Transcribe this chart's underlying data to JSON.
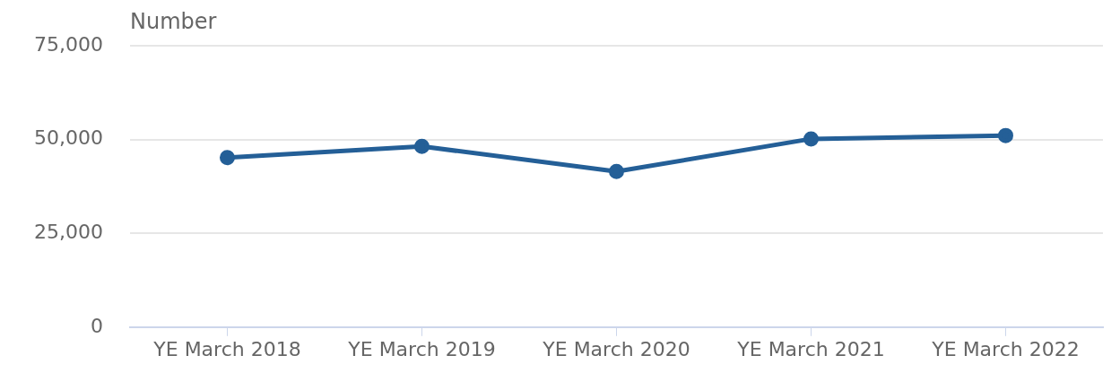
{
  "chart_data": {
    "type": "line",
    "ylabel": "Number",
    "categories": [
      "YE March 2018",
      "YE March 2019",
      "YE March 2020",
      "YE March 2021",
      "YE March 2022"
    ],
    "series": [
      {
        "color": "#245f97",
        "values": [
          45200,
          48200,
          41500,
          50200,
          51100
        ]
      }
    ],
    "ylim": [
      0,
      75000
    ],
    "yticks": [
      0,
      {
        "value": 25000,
        "label": "25,000"
      },
      {
        "value": 50000,
        "label": "50,000"
      },
      {
        "value": 75000,
        "label": "75,000"
      }
    ],
    "grid": "y",
    "legend": false,
    "marker": "circle",
    "line_style": "solid"
  }
}
